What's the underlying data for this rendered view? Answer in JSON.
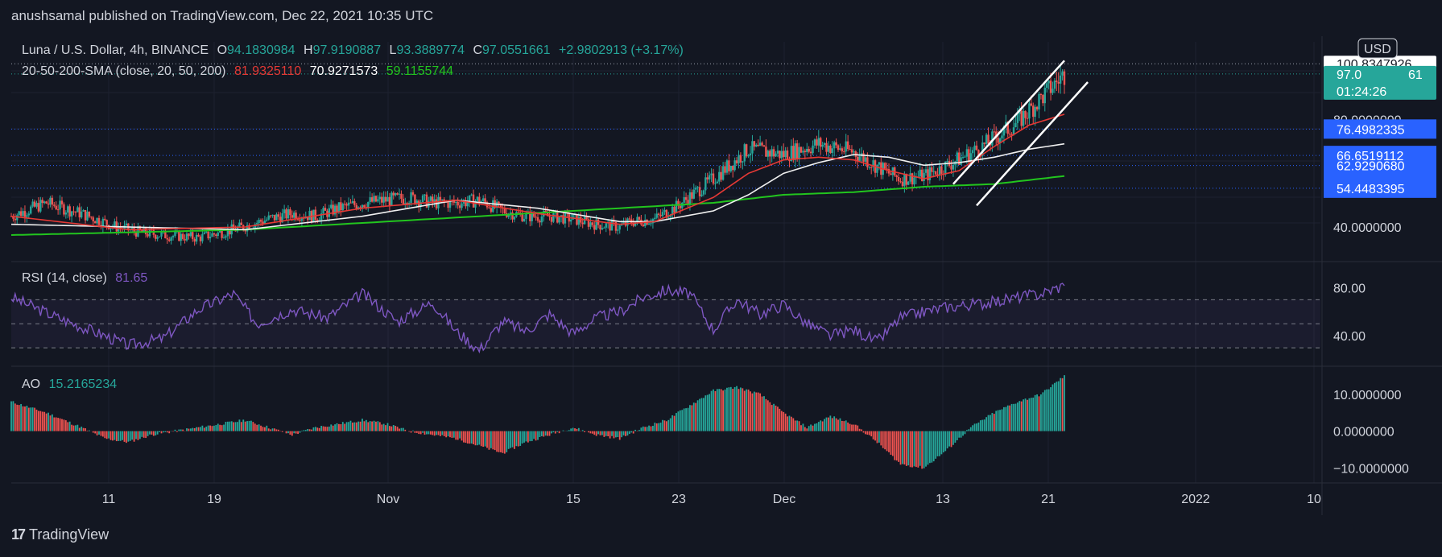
{
  "header": "anushsamal published on TradingView.com, Dec 22, 2021 10:35 UTC",
  "symbol": {
    "title": "Luna / U.S. Dollar, 4h, BINANCE",
    "o_label": "O",
    "o": "94.1830984",
    "h_label": "H",
    "h": "97.9190887",
    "l_label": "L",
    "l": "93.3889774",
    "c_label": "C",
    "c": "97.0551661",
    "change": "+2.9802913 (+3.17%)"
  },
  "sma": {
    "label": "20-50-200-SMA (close, 20, 50, 200)",
    "v20": "81.9325110",
    "v50": "70.9271573",
    "v200": "59.1155744"
  },
  "rsi": {
    "label": "RSI (14, close)",
    "value": "81.65"
  },
  "ao": {
    "label": "AO",
    "value": "15.2165234"
  },
  "price_badges": {
    "top": "100.8347926",
    "currency": "USD",
    "current": "97.0551661",
    "current_short": "97.0",
    "current_tail": "61",
    "countdown": "01:24:26",
    "levels": [
      "76.4982335",
      "66.6519112",
      "62.9290680",
      "54.4483395"
    ]
  },
  "axis_labels": {
    "price": [
      "80.0000000",
      "40.0000000"
    ],
    "rsi": [
      "80.00",
      "40.00"
    ],
    "ao": [
      "10.0000000",
      "0.0000000",
      "−10.0000000"
    ]
  },
  "footer_brand": "TradingView",
  "colors": {
    "bg": "#131722",
    "up": "#26a69a",
    "down": "#ef5350",
    "sma20": "#e53935",
    "sma50": "#f0f0f0",
    "sma200": "#22c51e",
    "rsi": "#7e57c2",
    "level": "#2962ff"
  },
  "chart_data": {
    "type": "candlestick",
    "title": "Luna / U.S. Dollar, 4h, BINANCE",
    "x_ticks": [
      "11",
      "19",
      "Nov",
      "15",
      "23",
      "Dec",
      "13",
      "21",
      "2022",
      "10"
    ],
    "price_ylim": [
      28,
      106
    ],
    "price_anchors": {
      "x": [
        0,
        3,
        6,
        9,
        11,
        13,
        16,
        19,
        22,
        24,
        26,
        28,
        30,
        32,
        34,
        36,
        38,
        40,
        42,
        44,
        46,
        48,
        50,
        52,
        53,
        55,
        57,
        60,
        63,
        66,
        69,
        72,
        75,
        76,
        78,
        80,
        83,
        86,
        88,
        90
      ],
      "close": [
        44,
        49,
        45,
        40,
        38,
        37,
        36,
        39,
        43,
        45,
        44,
        47,
        49,
        50,
        51,
        49,
        49,
        50,
        46,
        44,
        44,
        43,
        41,
        40,
        42,
        43,
        48,
        58,
        69,
        67,
        71,
        68,
        60,
        58,
        59,
        63,
        70,
        79,
        88,
        97
      ]
    },
    "sma20_anchors": {
      "x": [
        0,
        10,
        20,
        30,
        38,
        45,
        52,
        55,
        60,
        63,
        66,
        69,
        72,
        75,
        78,
        81,
        84,
        87,
        90
      ],
      "y": [
        44,
        39,
        40,
        47,
        50,
        45,
        41,
        42,
        51,
        60,
        65,
        66,
        65,
        61,
        58,
        61,
        70,
        78,
        82
      ]
    },
    "sma50_anchors": {
      "x": [
        0,
        10,
        20,
        30,
        38,
        45,
        52,
        55,
        60,
        63,
        66,
        69,
        72,
        75,
        78,
        81,
        84,
        87,
        90
      ],
      "y": [
        41,
        40,
        39,
        44,
        50,
        47,
        42,
        42,
        46,
        52,
        60,
        64,
        67,
        66,
        63,
        64,
        66,
        69,
        71
      ]
    },
    "sma200_anchors": {
      "x": [
        0,
        20,
        40,
        52,
        60,
        66,
        72,
        78,
        84,
        90
      ],
      "y": [
        37,
        39,
        44,
        47,
        49,
        52,
        53,
        55,
        56,
        59
      ]
    },
    "trendlines": [
      {
        "x1": 80.5,
        "y1": 56,
        "x2": 90,
        "y2": 102
      },
      {
        "x1": 82.5,
        "y1": 48,
        "x2": 92,
        "y2": 94
      }
    ],
    "rsi_ylim": [
      18,
      97
    ],
    "rsi_levels": [
      70,
      50,
      30
    ],
    "rsi_anchors": {
      "x": [
        0,
        4,
        8,
        10,
        13,
        16,
        19,
        21,
        24,
        27,
        30,
        33,
        36,
        38,
        40,
        42,
        44,
        46,
        48,
        50,
        52,
        54,
        56,
        58,
        60,
        62,
        64,
        66,
        68,
        70,
        72,
        74,
        76,
        78,
        80,
        82,
        84,
        86,
        88,
        90
      ],
      "y": [
        72,
        55,
        40,
        32,
        38,
        62,
        75,
        50,
        62,
        55,
        75,
        52,
        68,
        44,
        28,
        52,
        44,
        58,
        42,
        55,
        60,
        72,
        78,
        75,
        45,
        70,
        58,
        66,
        50,
        40,
        45,
        35,
        55,
        60,
        64,
        66,
        68,
        72,
        75,
        82
      ]
    },
    "ao_ylim": [
      -13,
      17
    ],
    "ao_anchors": {
      "x": [
        0,
        3,
        6,
        8,
        10,
        12,
        14,
        16,
        18,
        20,
        22,
        24,
        26,
        28,
        30,
        32,
        34,
        36,
        38,
        40,
        42,
        44,
        46,
        48,
        50,
        52,
        54,
        56,
        58,
        60,
        62,
        64,
        66,
        68,
        70,
        72,
        74,
        76,
        78,
        80,
        82,
        84,
        86,
        88,
        90
      ],
      "y": [
        8,
        5,
        1,
        -2,
        -3,
        -1,
        0,
        1,
        2,
        3,
        1,
        -1,
        1,
        2,
        3,
        2,
        0,
        -1,
        -2,
        -4,
        -6,
        -3,
        -1,
        1,
        -1,
        -2,
        1,
        3,
        7,
        11,
        12,
        10,
        5,
        1,
        4,
        2,
        -3,
        -9,
        -10,
        -5,
        1,
        5,
        8,
        10,
        15
      ]
    }
  }
}
